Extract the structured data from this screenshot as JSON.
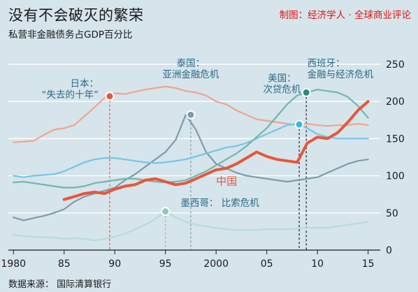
{
  "header": {
    "title": "没有不会破灭的繁荣",
    "credit": "制图：经济学人 · 全球商业评论",
    "subtitle": "私营非金融债务占GDP百分比"
  },
  "footer": {
    "source": "数据来源：  国际清算银行"
  },
  "chart_data": {
    "type": "line",
    "title": "没有不会破灭的繁荣",
    "ylabel": "",
    "xlim": [
      1979.5,
      2016.2
    ],
    "ylim": [
      0,
      250
    ],
    "yticks": [
      0,
      50,
      100,
      150,
      200,
      250
    ],
    "xticks": [
      {
        "value": 1980,
        "label": "1980"
      },
      {
        "value": 1985,
        "label": "85"
      },
      {
        "value": 1990,
        "label": "90"
      },
      {
        "value": 1995,
        "label": "95"
      },
      {
        "value": 2000,
        "label": "2000"
      },
      {
        "value": 2005,
        "label": "05"
      },
      {
        "value": 2010,
        "label": "10"
      },
      {
        "value": 2015,
        "label": "15"
      }
    ],
    "grid": true,
    "series": [
      {
        "name": "",
        "color": "#f0a58a",
        "points": [
          [
            1980,
            145
          ],
          [
            1981,
            146
          ],
          [
            1982,
            147
          ],
          [
            1983,
            155
          ],
          [
            1984,
            162
          ],
          [
            1985,
            164
          ],
          [
            1986,
            168
          ],
          [
            1987,
            180
          ],
          [
            1988,
            192
          ],
          [
            1989,
            205
          ],
          [
            1990,
            211
          ],
          [
            1991,
            210
          ],
          [
            1992,
            213
          ],
          [
            1993,
            216
          ],
          [
            1994,
            218
          ],
          [
            1995,
            220
          ],
          [
            1996,
            218
          ],
          [
            1997,
            214
          ],
          [
            1998,
            212
          ],
          [
            1999,
            208
          ],
          [
            2000,
            200
          ],
          [
            2001,
            196
          ],
          [
            2002,
            188
          ],
          [
            2003,
            182
          ],
          [
            2004,
            176
          ],
          [
            2005,
            174
          ],
          [
            2006,
            172
          ],
          [
            2007,
            170
          ],
          [
            2008,
            168
          ],
          [
            2009,
            170
          ],
          [
            2010,
            168
          ],
          [
            2011,
            167
          ],
          [
            2012,
            168
          ],
          [
            2013,
            168
          ],
          [
            2014,
            170
          ],
          [
            2015,
            168
          ]
        ]
      },
      {
        "name": "",
        "color": "#7d9cab",
        "points": [
          [
            1980,
            44
          ],
          [
            1981,
            40
          ],
          [
            1982,
            43
          ],
          [
            1983,
            46
          ],
          [
            1984,
            50
          ],
          [
            1985,
            55
          ],
          [
            1986,
            65
          ],
          [
            1987,
            72
          ],
          [
            1988,
            76
          ],
          [
            1989,
            80
          ],
          [
            1990,
            84
          ],
          [
            1991,
            94
          ],
          [
            1992,
            102
          ],
          [
            1993,
            112
          ],
          [
            1994,
            122
          ],
          [
            1995,
            132
          ],
          [
            1996,
            148
          ],
          [
            1997,
            182
          ],
          [
            1998,
            162
          ],
          [
            1999,
            132
          ],
          [
            2000,
            116
          ],
          [
            2001,
            110
          ],
          [
            2002,
            104
          ],
          [
            2003,
            100
          ],
          [
            2004,
            98
          ],
          [
            2005,
            96
          ],
          [
            2006,
            94
          ],
          [
            2007,
            92
          ],
          [
            2008,
            94
          ],
          [
            2009,
            96
          ],
          [
            2010,
            98
          ],
          [
            2011,
            104
          ],
          [
            2012,
            110
          ],
          [
            2013,
            116
          ],
          [
            2014,
            120
          ],
          [
            2015,
            122
          ]
        ]
      },
      {
        "name": "",
        "color": "#74c6e6",
        "points": [
          [
            1980,
            100
          ],
          [
            1981,
            98
          ],
          [
            1982,
            100
          ],
          [
            1983,
            101
          ],
          [
            1984,
            102
          ],
          [
            1985,
            106
          ],
          [
            1986,
            112
          ],
          [
            1987,
            118
          ],
          [
            1988,
            122
          ],
          [
            1989,
            124
          ],
          [
            1990,
            124
          ],
          [
            1991,
            122
          ],
          [
            1992,
            120
          ],
          [
            1993,
            118
          ],
          [
            1994,
            117
          ],
          [
            1995,
            118
          ],
          [
            1996,
            120
          ],
          [
            1997,
            122
          ],
          [
            1998,
            126
          ],
          [
            1999,
            130
          ],
          [
            2000,
            134
          ],
          [
            2001,
            138
          ],
          [
            2002,
            140
          ],
          [
            2003,
            144
          ],
          [
            2004,
            150
          ],
          [
            2005,
            156
          ],
          [
            2006,
            162
          ],
          [
            2007,
            168
          ],
          [
            2008,
            170
          ],
          [
            2009,
            164
          ],
          [
            2010,
            156
          ],
          [
            2011,
            152
          ],
          [
            2012,
            150
          ],
          [
            2013,
            150
          ],
          [
            2014,
            150
          ],
          [
            2015,
            150
          ]
        ]
      },
      {
        "name": "",
        "color": "#6fb8aa",
        "points": [
          [
            1980,
            91
          ],
          [
            1981,
            92
          ],
          [
            1982,
            90
          ],
          [
            1983,
            88
          ],
          [
            1984,
            86
          ],
          [
            1985,
            84
          ],
          [
            1986,
            84
          ],
          [
            1987,
            86
          ],
          [
            1988,
            90
          ],
          [
            1989,
            92
          ],
          [
            1990,
            94
          ],
          [
            1991,
            96
          ],
          [
            1992,
            96
          ],
          [
            1993,
            94
          ],
          [
            1994,
            92
          ],
          [
            1995,
            91
          ],
          [
            1996,
            92
          ],
          [
            1997,
            94
          ],
          [
            1998,
            100
          ],
          [
            1999,
            106
          ],
          [
            2000,
            114
          ],
          [
            2001,
            122
          ],
          [
            2002,
            130
          ],
          [
            2003,
            140
          ],
          [
            2004,
            152
          ],
          [
            2005,
            164
          ],
          [
            2006,
            180
          ],
          [
            2007,
            196
          ],
          [
            2008,
            208
          ],
          [
            2009,
            212
          ],
          [
            2010,
            216
          ],
          [
            2011,
            214
          ],
          [
            2012,
            212
          ],
          [
            2013,
            206
          ],
          [
            2014,
            194
          ],
          [
            2015,
            178
          ]
        ]
      },
      {
        "name": "",
        "color": "#b4ded2",
        "points": [
          [
            1980,
            20
          ],
          [
            1981,
            19
          ],
          [
            1982,
            18
          ],
          [
            1983,
            17
          ],
          [
            1984,
            17
          ],
          [
            1985,
            15
          ],
          [
            1986,
            16
          ],
          [
            1987,
            15
          ],
          [
            1988,
            13
          ],
          [
            1989,
            15
          ],
          [
            1990,
            18
          ],
          [
            1991,
            22
          ],
          [
            1992,
            28
          ],
          [
            1993,
            34
          ],
          [
            1994,
            42
          ],
          [
            1995,
            52
          ],
          [
            1996,
            44
          ],
          [
            1997,
            38
          ],
          [
            1998,
            34
          ],
          [
            1999,
            32
          ],
          [
            2000,
            30
          ],
          [
            2001,
            28
          ],
          [
            2002,
            27
          ],
          [
            2003,
            27
          ],
          [
            2004,
            27
          ],
          [
            2005,
            28
          ],
          [
            2006,
            28
          ],
          [
            2007,
            28
          ],
          [
            2008,
            29
          ],
          [
            2009,
            30
          ],
          [
            2010,
            30
          ],
          [
            2011,
            30
          ],
          [
            2012,
            32
          ],
          [
            2013,
            34
          ],
          [
            2014,
            36
          ],
          [
            2015,
            38
          ]
        ]
      },
      {
        "name": "中国",
        "color": "#e8563a",
        "width": 4,
        "points": [
          [
            1985,
            68
          ],
          [
            1986,
            72
          ],
          [
            1987,
            76
          ],
          [
            1988,
            78
          ],
          [
            1989,
            76
          ],
          [
            1990,
            82
          ],
          [
            1991,
            86
          ],
          [
            1992,
            88
          ],
          [
            1993,
            94
          ],
          [
            1994,
            96
          ],
          [
            1995,
            92
          ],
          [
            1996,
            88
          ],
          [
            1997,
            90
          ],
          [
            1998,
            96
          ],
          [
            1999,
            102
          ],
          [
            2000,
            108
          ],
          [
            2001,
            110
          ],
          [
            2002,
            116
          ],
          [
            2003,
            124
          ],
          [
            2004,
            132
          ],
          [
            2005,
            126
          ],
          [
            2006,
            122
          ],
          [
            2007,
            120
          ],
          [
            2008,
            118
          ],
          [
            2009,
            144
          ],
          [
            2010,
            152
          ],
          [
            2011,
            150
          ],
          [
            2012,
            158
          ],
          [
            2013,
            172
          ],
          [
            2014,
            188
          ],
          [
            2015,
            200
          ]
        ]
      }
    ],
    "annotations": [
      {
        "lines": [
          "日本：",
          "“失去的十年”"
        ],
        "align": "end",
        "at": [
          1988.4,
          220
        ]
      },
      {
        "lines": [
          "泰国：",
          "亚洲金融危机"
        ],
        "align": "middle",
        "at": [
          1997.5,
          247
        ]
      },
      {
        "lines": [
          "美国：",
          "次贷危机"
        ],
        "align": "middle",
        "at": [
          2006.5,
          227
        ]
      },
      {
        "lines": [
          "西班牙：",
          "金融与经济危机"
        ],
        "align": "start",
        "at": [
          2009.0,
          247
        ]
      },
      {
        "lines": [
          "墨西哥：  比索危机"
        ],
        "align": "start",
        "at": [
          1996.5,
          59
        ]
      },
      {
        "lines": [
          "中国"
        ],
        "align": "start",
        "at": [
          2000.0,
          88
        ],
        "china": true
      }
    ],
    "event_markers": [
      {
        "x": 1989.5,
        "y": 207,
        "style": "dashed",
        "color": "#e8563a",
        "dot": "#e8563a"
      },
      {
        "x": 1997.5,
        "y": 182,
        "style": "dashed",
        "color": "#7d9cab",
        "dot": "#7d9cab"
      },
      {
        "x": 2008.2,
        "y": 169,
        "style": "dashed",
        "color": "#1a1a1a",
        "dot": "#3fb6e0"
      },
      {
        "x": 2008.9,
        "y": 212,
        "style": "dashed",
        "color": "#1a1a1a",
        "dot": "#2a8a7a"
      },
      {
        "x": 1995.0,
        "y": 52,
        "style": "dashed",
        "color": "#8fbdb6",
        "dot": "#8fc8c0"
      }
    ]
  }
}
